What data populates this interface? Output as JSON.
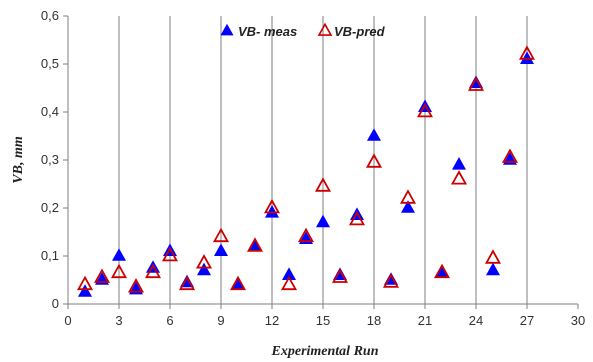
{
  "chart_data": {
    "type": "scatter",
    "xlabel": "Experimental Run",
    "ylabel": "VB, mm",
    "xlim": [
      0,
      30
    ],
    "ylim": [
      0,
      0.6
    ],
    "x_ticks": [
      "0",
      "3",
      "6",
      "9",
      "12",
      "15",
      "18",
      "21",
      "24",
      "27",
      "30"
    ],
    "y_ticks": [
      "0",
      "0,1",
      "0,2",
      "0,3",
      "0,4",
      "0,5",
      "0,6"
    ],
    "x_tick_values": [
      0,
      3,
      6,
      9,
      12,
      15,
      18,
      21,
      24,
      27,
      30
    ],
    "y_tick_values": [
      0,
      0.1,
      0.2,
      0.3,
      0.4,
      0.5,
      0.6
    ],
    "vertical_gridlines": [
      3,
      6,
      9,
      12,
      15,
      18,
      21,
      24,
      27
    ],
    "horizontal_gridlines": false,
    "legend_position": "top-center",
    "series": [
      {
        "name": "VB- meas",
        "marker": "filled-triangle",
        "color": "#0000ff",
        "x": [
          1,
          2,
          3,
          4,
          5,
          6,
          7,
          8,
          9,
          10,
          11,
          12,
          13,
          14,
          15,
          16,
          17,
          18,
          19,
          20,
          21,
          22,
          23,
          24,
          25,
          26,
          27
        ],
        "y": [
          0.025,
          0.05,
          0.1,
          0.03,
          0.075,
          0.11,
          0.045,
          0.07,
          0.11,
          0.04,
          0.12,
          0.19,
          0.06,
          0.135,
          0.17,
          0.06,
          0.185,
          0.35,
          0.05,
          0.2,
          0.41,
          0.065,
          0.29,
          0.46,
          0.07,
          0.3,
          0.51
        ]
      },
      {
        "name": "VB-pred",
        "marker": "hollow-triangle",
        "color": "#cc0000",
        "x": [
          1,
          2,
          3,
          4,
          5,
          6,
          7,
          8,
          9,
          10,
          11,
          12,
          13,
          14,
          15,
          16,
          17,
          18,
          19,
          20,
          21,
          22,
          23,
          24,
          25,
          26,
          27
        ],
        "y": [
          0.04,
          0.055,
          0.065,
          0.035,
          0.065,
          0.1,
          0.04,
          0.085,
          0.14,
          0.04,
          0.12,
          0.2,
          0.04,
          0.14,
          0.245,
          0.055,
          0.175,
          0.295,
          0.045,
          0.22,
          0.4,
          0.065,
          0.26,
          0.455,
          0.095,
          0.305,
          0.52
        ]
      }
    ]
  }
}
